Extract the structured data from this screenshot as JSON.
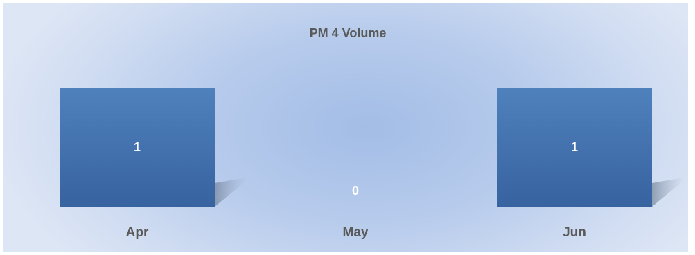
{
  "chart_data": {
    "type": "bar",
    "title": "PM 4 Volume",
    "categories": [
      "Apr",
      "May",
      "Jun"
    ],
    "values": [
      1,
      0,
      1
    ],
    "ylim": [
      0,
      1.2
    ],
    "grid": false,
    "legend": "none",
    "data_labels": true,
    "colors": {
      "bar_top": "#4f81bd",
      "bar_bottom": "#3a67a3",
      "label_text": "#595959",
      "data_label_text": "#ffffff"
    }
  }
}
